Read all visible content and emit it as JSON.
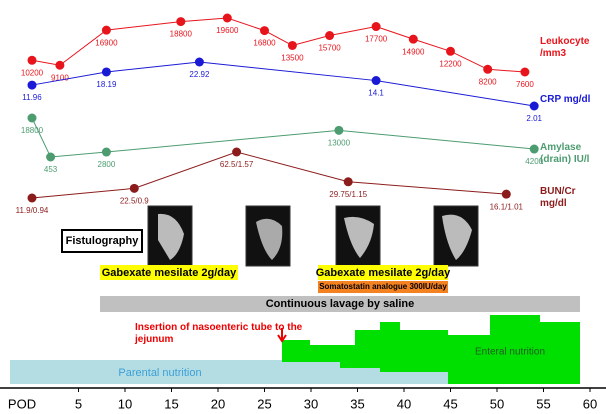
{
  "chart_data": {
    "type": "line",
    "x_label": "POD",
    "xlim": [
      0,
      60
    ],
    "xticks": [
      5,
      10,
      15,
      20,
      25,
      30,
      35,
      40,
      45,
      50,
      55,
      60
    ],
    "series": [
      {
        "name": "Leukocyte /mm3",
        "color": "#e8141c",
        "x": [
          0,
          3,
          8,
          16,
          21,
          25,
          28,
          32,
          37,
          41,
          45,
          49,
          53
        ],
        "values": [
          10200,
          9100,
          16900,
          18800,
          19600,
          16800,
          13500,
          15700,
          17700,
          14900,
          12200,
          8200,
          7600
        ]
      },
      {
        "name": "CRP mg/dl",
        "color": "#1a1ad6",
        "x": [
          0,
          8,
          18,
          37,
          54
        ],
        "values": [
          11.96,
          18.19,
          22.92,
          14.1,
          2.01
        ]
      },
      {
        "name": "Amylase (drain) IU/l",
        "color": "#4c9c70",
        "x": [
          0,
          2,
          8,
          33,
          54
        ],
        "values": [
          18800,
          453,
          2800,
          13000,
          4200
        ]
      },
      {
        "name": "BUN/Cr mg/dl",
        "color": "#8c1c1c",
        "x": [
          0,
          11,
          22,
          34,
          51
        ],
        "values": [
          11.9,
          22.5,
          62.5,
          29.75,
          16.1
        ],
        "value_labels": [
          "11.9/0.94",
          "22.5/0.9",
          "62.5/1.57",
          "29.75/1.15",
          "16.1/1.01"
        ]
      }
    ],
    "annotations": [
      "Fistulography",
      "Gabexate mesilate 2g/day",
      "Gabexate mesilate 2g/day",
      "Somatostatin analogue 300IU/day",
      "Continuous lavage by saline",
      "Insertion of nasoenteric tube to the jejunum",
      "Parental nutrition",
      "Enteral nutrition"
    ]
  }
}
